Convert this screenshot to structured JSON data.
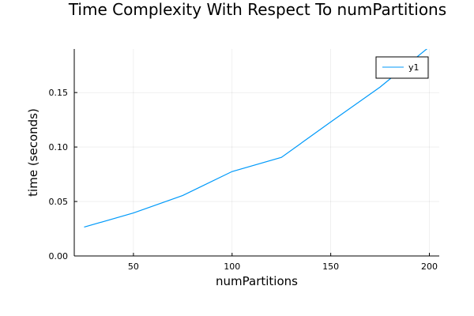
{
  "chart_data": {
    "type": "line",
    "title": "Time Complexity With Respect To numPartitions",
    "xlabel": "numPartitions",
    "ylabel": "time (seconds)",
    "xlim": [
      20,
      205
    ],
    "ylim": [
      0.0,
      0.19
    ],
    "x_ticks": [
      50,
      100,
      150,
      200
    ],
    "x_tick_labels": [
      "50",
      "100",
      "150",
      "200"
    ],
    "y_ticks": [
      0.0,
      0.05,
      0.1,
      0.15
    ],
    "y_tick_labels": [
      "0.00",
      "0.05",
      "0.10",
      "0.15"
    ],
    "grid": true,
    "legend_position": "top-right",
    "series": [
      {
        "name": "y1",
        "color": "#009AFA",
        "x": [
          25,
          50,
          75,
          100,
          125,
          150,
          175,
          200
        ],
        "y": [
          0.0265,
          0.0395,
          0.0555,
          0.0775,
          0.0905,
          0.123,
          0.155,
          0.192
        ]
      }
    ]
  }
}
